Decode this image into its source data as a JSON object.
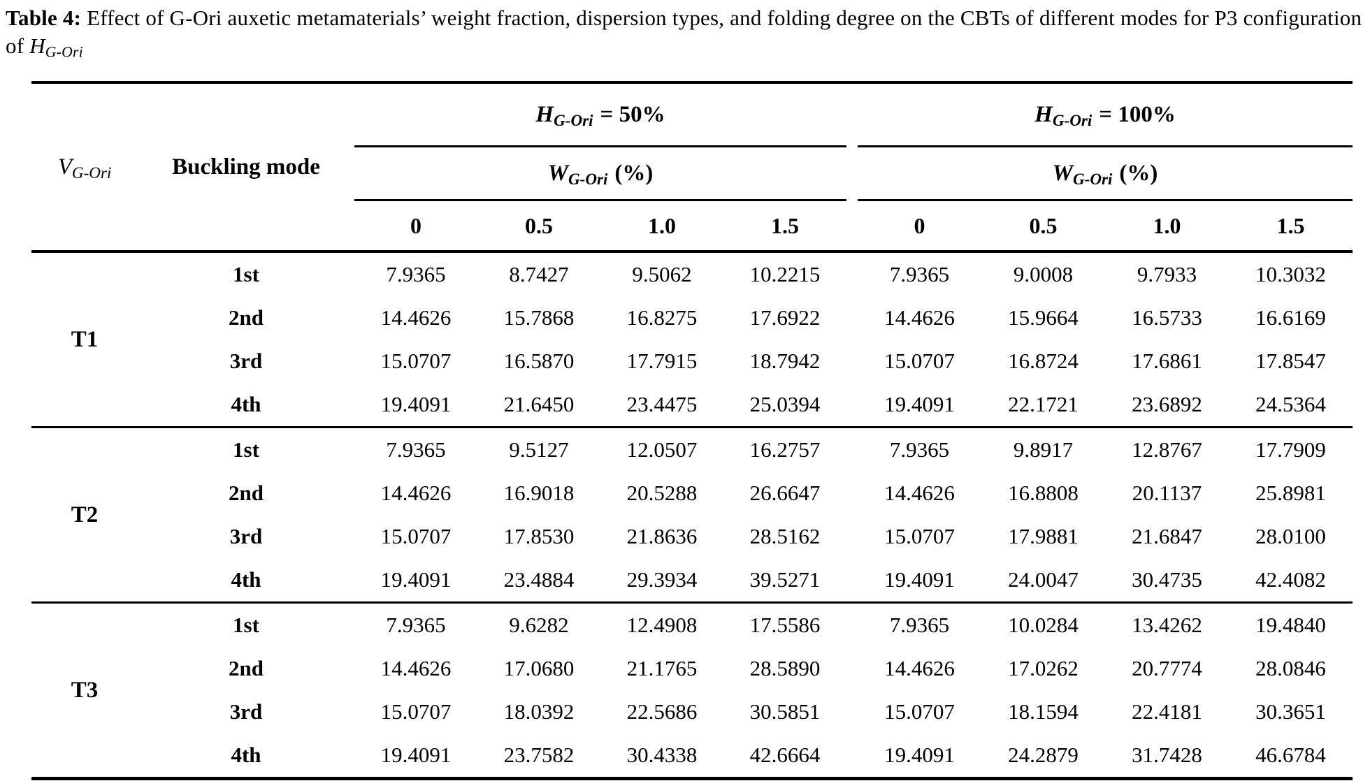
{
  "caption": {
    "label": "Table 4:",
    "body": " Effect of G-Ori auxetic metamaterials’ weight fraction, dispersion types, and folding degree on the CBTs of different modes for P3 configuration of ",
    "math_main": "H",
    "math_sub": "G-Ori"
  },
  "header": {
    "v_main": "V",
    "v_sub": "G-Ori",
    "buckling_mode": "Buckling mode",
    "groups": [
      {
        "h_main": "H",
        "h_sub": "G-Ori",
        "h_eq": "= 50%",
        "w_main": "W",
        "w_sub": "G-Ori",
        "w_unit": "(%)",
        "cols": [
          "0",
          "0.5",
          "1.0",
          "1.5"
        ]
      },
      {
        "h_main": "H",
        "h_sub": "G-Ori",
        "h_eq": "= 100%",
        "w_main": "W",
        "w_sub": "G-Ori",
        "w_unit": "(%)",
        "cols": [
          "0",
          "0.5",
          "1.0",
          "1.5"
        ]
      }
    ]
  },
  "blocks": [
    {
      "label": "T1",
      "rows": [
        {
          "mode": "1st",
          "values": [
            "7.9365",
            "8.7427",
            "9.5062",
            "10.2215",
            "7.9365",
            "9.0008",
            "9.7933",
            "10.3032"
          ]
        },
        {
          "mode": "2nd",
          "values": [
            "14.4626",
            "15.7868",
            "16.8275",
            "17.6922",
            "14.4626",
            "15.9664",
            "16.5733",
            "16.6169"
          ]
        },
        {
          "mode": "3rd",
          "values": [
            "15.0707",
            "16.5870",
            "17.7915",
            "18.7942",
            "15.0707",
            "16.8724",
            "17.6861",
            "17.8547"
          ]
        },
        {
          "mode": "4th",
          "values": [
            "19.4091",
            "21.6450",
            "23.4475",
            "25.0394",
            "19.4091",
            "22.1721",
            "23.6892",
            "24.5364"
          ]
        }
      ]
    },
    {
      "label": "T2",
      "rows": [
        {
          "mode": "1st",
          "values": [
            "7.9365",
            "9.5127",
            "12.0507",
            "16.2757",
            "7.9365",
            "9.8917",
            "12.8767",
            "17.7909"
          ]
        },
        {
          "mode": "2nd",
          "values": [
            "14.4626",
            "16.9018",
            "20.5288",
            "26.6647",
            "14.4626",
            "16.8808",
            "20.1137",
            "25.8981"
          ]
        },
        {
          "mode": "3rd",
          "values": [
            "15.0707",
            "17.8530",
            "21.8636",
            "28.5162",
            "15.0707",
            "17.9881",
            "21.6847",
            "28.0100"
          ]
        },
        {
          "mode": "4th",
          "values": [
            "19.4091",
            "23.4884",
            "29.3934",
            "39.5271",
            "19.4091",
            "24.0047",
            "30.4735",
            "42.4082"
          ]
        }
      ]
    },
    {
      "label": "T3",
      "rows": [
        {
          "mode": "1st",
          "values": [
            "7.9365",
            "9.6282",
            "12.4908",
            "17.5586",
            "7.9365",
            "10.0284",
            "13.4262",
            "19.4840"
          ]
        },
        {
          "mode": "2nd",
          "values": [
            "14.4626",
            "17.0680",
            "21.1765",
            "28.5890",
            "14.4626",
            "17.0262",
            "20.7774",
            "28.0846"
          ]
        },
        {
          "mode": "3rd",
          "values": [
            "15.0707",
            "18.0392",
            "22.5686",
            "30.5851",
            "15.0707",
            "18.1594",
            "22.4181",
            "30.3651"
          ]
        },
        {
          "mode": "4th",
          "values": [
            "19.4091",
            "23.7582",
            "30.4338",
            "42.6664",
            "19.4091",
            "24.2879",
            "31.7428",
            "46.6784"
          ]
        }
      ]
    }
  ]
}
